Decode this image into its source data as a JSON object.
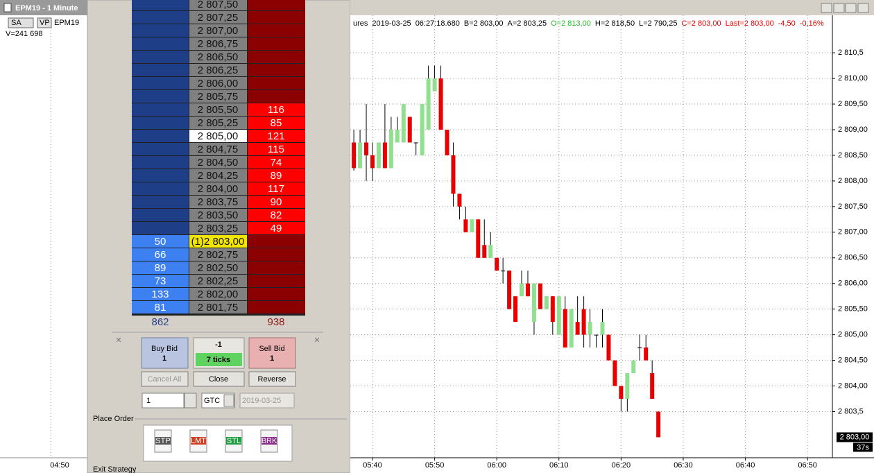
{
  "left_chart": {
    "title": "EPM19 - 1 Minute",
    "buttons": [
      "SA",
      "VP"
    ],
    "instrument": "EPM19",
    "volume": "V=241 698",
    "time_label": "04:50"
  },
  "ladder": {
    "rows": [
      {
        "price": "2 807,50"
      },
      {
        "price": "2 807,25"
      },
      {
        "price": "2 807,00"
      },
      {
        "price": "2 806,75"
      },
      {
        "price": "2 806,50"
      },
      {
        "price": "2 806,25"
      },
      {
        "price": "2 806,00"
      },
      {
        "price": "2 805,75"
      },
      {
        "price": "2 805,50",
        "ask": 116
      },
      {
        "price": "2 805,25",
        "ask": 85
      },
      {
        "price": "2 805,00",
        "ask": 121,
        "price_color": "#ffffff"
      },
      {
        "price": "2 804,75",
        "ask": 115
      },
      {
        "price": "2 804,50",
        "ask": 74
      },
      {
        "price": "2 804,25",
        "ask": 89
      },
      {
        "price": "2 804,00",
        "ask": 117
      },
      {
        "price": "2 803,75",
        "ask": 90
      },
      {
        "price": "2 803,50",
        "ask": 82
      },
      {
        "price": "2 803,25",
        "ask": 49
      },
      {
        "price": "(1)2 803,00",
        "bid": 50,
        "price_color": "#f2e600"
      },
      {
        "price": "2 802,75",
        "bid": 66
      },
      {
        "price": "2 802,50",
        "bid": 89
      },
      {
        "price": "2 802,25",
        "bid": 73
      },
      {
        "price": "2 802,00",
        "bid": 133
      },
      {
        "price": "2 801,75",
        "bid": 81
      }
    ],
    "bid_total": 862,
    "ask_total": 938
  },
  "order_panel": {
    "buy_label": "Buy Bid",
    "buy_qty": "1",
    "position": "-1",
    "ticks": "7 ticks",
    "sell_label": "Sell Bid",
    "sell_qty": "1",
    "cancel_all": "Cancel All",
    "close": "Close",
    "reverse": "Reverse",
    "quantity": "1",
    "tif": "GTC",
    "date": "2019-03-25",
    "place_order": "Place Order",
    "order_types": [
      "STP",
      "LMT",
      "STL",
      "BRK"
    ],
    "exit_strategy": "Exit Strategy"
  },
  "chart": {
    "type": "candlestick",
    "header": [
      {
        "text": "ures",
        "color": "#000000"
      },
      {
        "text": "2019-03-25",
        "color": "#000000"
      },
      {
        "text": "06:27:18.680",
        "color": "#000000"
      },
      {
        "text": "B=2 803,00",
        "color": "#000000"
      },
      {
        "text": "A=2 803,25",
        "color": "#000000"
      },
      {
        "text": "O=2 813,00",
        "color": "#20c020"
      },
      {
        "text": "H=2 818,50",
        "color": "#000000"
      },
      {
        "text": "L=2 790,25",
        "color": "#000000"
      },
      {
        "text": "C=2 803,00",
        "color": "#e00000"
      },
      {
        "text": "Last=2 803,00",
        "color": "#e00000"
      },
      {
        "text": "-4,50",
        "color": "#e00000"
      },
      {
        "text": "-0,16%",
        "color": "#e00000"
      }
    ],
    "x": [
      -3,
      -2,
      -1,
      0,
      1,
      2,
      3,
      4,
      5,
      6,
      7,
      8,
      9,
      10,
      11,
      12,
      13,
      14,
      15,
      16,
      17,
      18,
      19,
      20,
      21,
      22,
      23,
      24,
      25,
      26,
      27,
      28,
      29,
      30,
      31,
      32,
      33,
      34,
      35,
      36,
      37,
      38,
      39,
      40,
      41,
      42,
      43,
      44,
      45,
      46
    ],
    "open": [
      2808.75,
      2808.25,
      2808.75,
      2808.5,
      2808.25,
      2808.75,
      2808.25,
      2808.75,
      2808.75,
      2809.25,
      2808.75,
      2808.5,
      2809.0,
      2809.75,
      2810.0,
      2809.0,
      2808.5,
      2807.75,
      2807.25,
      2807.0,
      2807.25,
      2806.75,
      2806.5,
      2806.5,
      2806.25,
      2806.25,
      2805.75,
      2805.75,
      2806.0,
      2805.25,
      2806.0,
      2805.5,
      2805.75,
      2805.0,
      2805.5,
      2804.75,
      2805.25,
      2805.5,
      2805.0,
      2805.0,
      2805.0,
      2805.0,
      2804.5,
      2804.0,
      2803.75,
      2804.25,
      2804.75,
      2804.75,
      2804.25,
      2803.5
    ],
    "high": [
      2809.0,
      2809.0,
      2809.5,
      2808.75,
      2808.75,
      2809.5,
      2809.25,
      2809.25,
      2809.5,
      2809.25,
      2808.75,
      2809.5,
      2810.25,
      2810.25,
      2810.25,
      2809.0,
      2808.75,
      2807.75,
      2807.5,
      2807.25,
      2807.25,
      2807.25,
      2807.0,
      2806.5,
      2806.5,
      2806.25,
      2805.75,
      2806.25,
      2806.25,
      2806.0,
      2806.0,
      2805.75,
      2805.75,
      2805.75,
      2805.75,
      2805.5,
      2805.75,
      2805.75,
      2805.5,
      2805.0,
      2805.5,
      2805.0,
      2804.5,
      2804.0,
      2804.25,
      2804.5,
      2805.0,
      2805.0,
      2804.5,
      2803.5
    ],
    "low": [
      2808.2,
      2808.25,
      2808.0,
      2808.0,
      2808.25,
      2808.25,
      2808.25,
      2808.75,
      2808.75,
      2808.75,
      2808.5,
      2808.5,
      2809.0,
      2809.75,
      2809.0,
      2808.5,
      2807.5,
      2807.25,
      2807.0,
      2807.0,
      2806.5,
      2806.5,
      2806.5,
      2806.25,
      2806.0,
      2805.5,
      2805.25,
      2805.75,
      2805.75,
      2805.0,
      2805.5,
      2805.5,
      2805.0,
      2805.0,
      2804.75,
      2804.75,
      2805.0,
      2804.75,
      2804.75,
      2804.75,
      2804.75,
      2804.5,
      2804.0,
      2803.5,
      2803.5,
      2804.25,
      2804.5,
      2804.5,
      2803.75,
      2803.0
    ],
    "close": [
      2808.25,
      2808.75,
      2808.5,
      2808.25,
      2808.75,
      2808.25,
      2809.0,
      2809.0,
      2809.5,
      2808.75,
      2808.75,
      2809.5,
      2810.0,
      2810.0,
      2809.0,
      2808.5,
      2807.75,
      2807.5,
      2807.0,
      2807.25,
      2806.5,
      2806.5,
      2806.75,
      2806.25,
      2806.25,
      2805.5,
      2805.25,
      2806.0,
      2805.75,
      2806.0,
      2805.5,
      2805.75,
      2805.25,
      2805.75,
      2804.75,
      2805.5,
      2805.0,
      2805.0,
      2805.25,
      2805.0,
      2805.25,
      2804.5,
      2804.0,
      2803.75,
      2804.25,
      2804.5,
      2804.75,
      2804.5,
      2803.75,
      2803.0
    ],
    "up_color": "#90e090",
    "down_color": "#e80000",
    "ylim": [
      2802.6,
      2811.53
    ],
    "xlim": [
      -3.57,
      74
    ],
    "yticks": [
      {
        "value": 2810.5,
        "label": "2 810,5"
      },
      {
        "value": 2810,
        "label": "2 810,00"
      },
      {
        "value": 2809.5,
        "label": "2 809,50"
      },
      {
        "value": 2809,
        "label": "2 809,00"
      },
      {
        "value": 2808.5,
        "label": "2 808,50"
      },
      {
        "value": 2808,
        "label": "2 808,00"
      },
      {
        "value": 2807.5,
        "label": "2 807,50"
      },
      {
        "value": 2807,
        "label": "2 807,00"
      },
      {
        "value": 2806.5,
        "label": "2 806,50"
      },
      {
        "value": 2806,
        "label": "2 806,00"
      },
      {
        "value": 2805.5,
        "label": "2 805,50"
      },
      {
        "value": 2805,
        "label": "2 805,00"
      },
      {
        "value": 2804.5,
        "label": "2 804,50"
      },
      {
        "value": 2804,
        "label": "2 804,00"
      },
      {
        "value": 2803.5,
        "label": "2 803,5"
      }
    ],
    "xticks": [
      {
        "value": 0,
        "label": "05:40"
      },
      {
        "value": 10,
        "label": "05:50"
      },
      {
        "value": 20,
        "label": "06:00"
      },
      {
        "value": 30,
        "label": "06:10"
      },
      {
        "value": 40,
        "label": "06:20"
      },
      {
        "value": 50,
        "label": "06:30"
      },
      {
        "value": 60,
        "label": "06:40"
      },
      {
        "value": 70,
        "label": "06:50"
      }
    ],
    "last_price": 2803,
    "last_price_label": "2 803,00",
    "timer": "37s",
    "grid": true
  }
}
